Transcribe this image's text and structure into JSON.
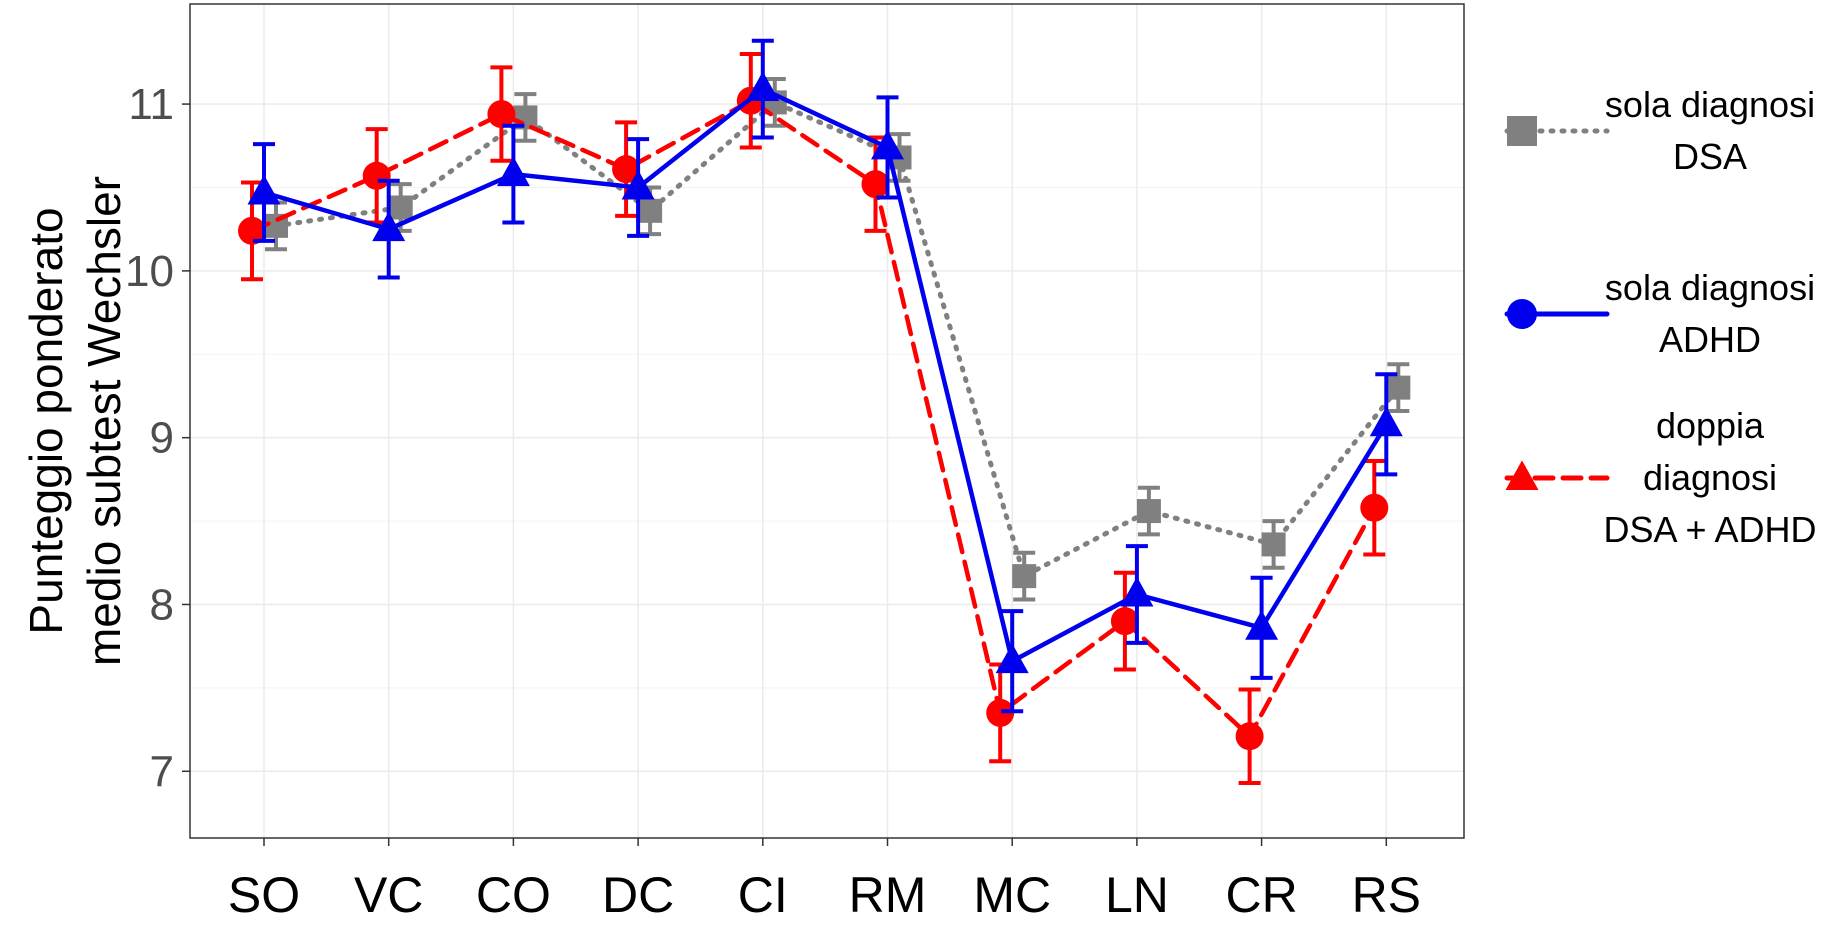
{
  "chart_data": {
    "type": "line",
    "ylabel_line1": "Punteggio ponderato",
    "ylabel_line2": "medio subtest Wechsler",
    "xlabel": "",
    "categories": [
      "SO",
      "VC",
      "CO",
      "DC",
      "CI",
      "RM",
      "MC",
      "LN",
      "CR",
      "RS"
    ],
    "ylim": [
      6.6,
      11.6
    ],
    "yticks": [
      7,
      8,
      9,
      10,
      11
    ],
    "grid": true,
    "legend_position": "right",
    "series": [
      {
        "name_lines": [
          "sola diagnosi",
          "DSA"
        ],
        "marker": "square",
        "line_style": "dotted",
        "color": "#808080",
        "values": [
          10.27,
          10.38,
          10.92,
          10.36,
          11.01,
          10.68,
          8.17,
          8.56,
          8.36,
          9.3
        ],
        "err": [
          0.14,
          0.14,
          0.14,
          0.14,
          0.14,
          0.14,
          0.14,
          0.14,
          0.14,
          0.14
        ]
      },
      {
        "name_lines": [
          "sola diagnosi",
          "ADHD"
        ],
        "marker": "circle",
        "line_style": "solid",
        "color": "#0000ee",
        "values": [
          10.47,
          10.25,
          10.58,
          10.5,
          11.09,
          10.74,
          7.66,
          8.06,
          7.86,
          9.08
        ],
        "err": [
          0.29,
          0.29,
          0.29,
          0.29,
          0.29,
          0.3,
          0.3,
          0.29,
          0.3,
          0.3
        ]
      },
      {
        "name_lines": [
          "doppia",
          "diagnosi",
          "DSA + ADHD"
        ],
        "marker": "triangle",
        "line_style": "dashed",
        "color": "#ff0000",
        "values": [
          10.24,
          10.57,
          10.94,
          10.61,
          11.02,
          10.52,
          7.35,
          7.9,
          7.21,
          8.58
        ],
        "err": [
          0.29,
          0.28,
          0.28,
          0.28,
          0.28,
          0.28,
          0.29,
          0.29,
          0.28,
          0.28
        ]
      }
    ]
  }
}
